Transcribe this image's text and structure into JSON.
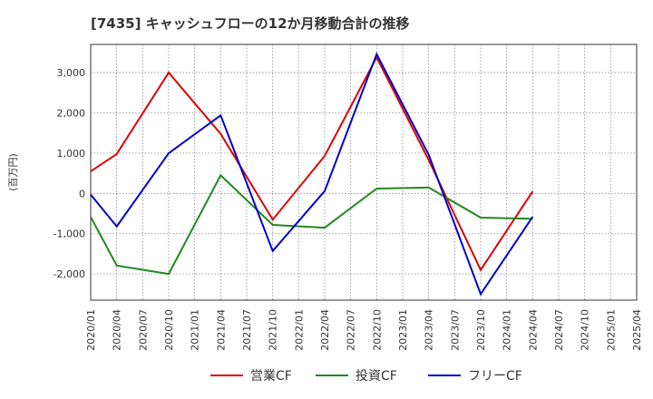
{
  "chart_data": {
    "type": "line",
    "title": "[7435]  キャッシュフローの12か月移動合計の推移",
    "ylabel": "(百万円)",
    "xlabel": "",
    "ylim": [
      -2650,
      3700
    ],
    "yticks": [
      -2000,
      -1000,
      0,
      1000,
      2000,
      3000
    ],
    "ytick_labels": [
      "-2,000",
      "-1,000",
      "0",
      "1,000",
      "2,000",
      "3,000"
    ],
    "categories": [
      "2020/01",
      "2020/04",
      "2020/07",
      "2020/10",
      "2021/01",
      "2021/04",
      "2021/07",
      "2021/10",
      "2022/01",
      "2022/04",
      "2022/07",
      "2022/10",
      "2023/01",
      "2023/04",
      "2023/07",
      "2023/10",
      "2024/01",
      "2024/04",
      "2024/07",
      "2024/10",
      "2025/01",
      "2025/04"
    ],
    "grid": true,
    "legend_position": "bottom",
    "series": [
      {
        "name": "営業CF",
        "color": "#dd0000",
        "points": [
          [
            0,
            550
          ],
          [
            1,
            980
          ],
          [
            3,
            3000
          ],
          [
            5,
            1480
          ],
          [
            7,
            -650
          ],
          [
            9,
            930
          ],
          [
            11,
            3380
          ],
          [
            13,
            830
          ],
          [
            15,
            -1900
          ],
          [
            17,
            50
          ]
        ]
      },
      {
        "name": "投資CF",
        "color": "#228822",
        "points": [
          [
            0,
            -580
          ],
          [
            1,
            -1790
          ],
          [
            3,
            -2000
          ],
          [
            5,
            450
          ],
          [
            7,
            -780
          ],
          [
            9,
            -850
          ],
          [
            11,
            120
          ],
          [
            13,
            150
          ],
          [
            15,
            -600
          ],
          [
            17,
            -630
          ]
        ]
      },
      {
        "name": "フリーCF",
        "color": "#0000cc",
        "points": [
          [
            0,
            -30
          ],
          [
            1,
            -820
          ],
          [
            3,
            1000
          ],
          [
            5,
            1940
          ],
          [
            7,
            -1430
          ],
          [
            9,
            60
          ],
          [
            11,
            3460
          ],
          [
            13,
            960
          ],
          [
            15,
            -2500
          ],
          [
            17,
            -580
          ]
        ]
      }
    ]
  }
}
